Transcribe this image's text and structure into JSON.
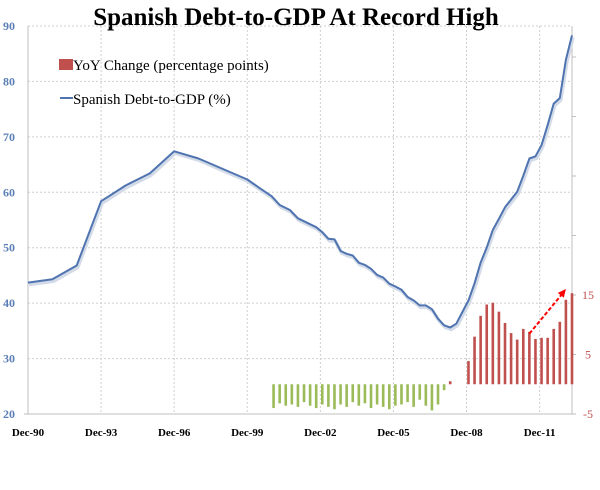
{
  "chart_data": {
    "type": "bar+line",
    "title": "Spanish Debt-to-GDP At Record High",
    "legend": {
      "placement": "top-left",
      "entries": [
        {
          "name": "YoY Change (percentage points)",
          "type": "bar",
          "color": "#c0504d"
        },
        {
          "name": "Spanish Debt-to-GDP (%)",
          "type": "line",
          "color": "#4f74b0"
        }
      ]
    },
    "x_tick_labels": [
      "Dec-90",
      "Dec-93",
      "Dec-96",
      "Dec-99",
      "Dec-02",
      "Dec-05",
      "Dec-08",
      "Dec-11"
    ],
    "x_tick_years": [
      1990.92,
      1993.92,
      1996.92,
      1999.92,
      2002.92,
      2005.92,
      2008.92,
      2011.92
    ],
    "x_range": [
      1990.92,
      2013.25
    ],
    "left_axis": {
      "label": "Spanish Debt-to-GDP (%)",
      "ticks": [
        20,
        30,
        40,
        50,
        60,
        70,
        80,
        90
      ],
      "range": [
        20,
        90
      ],
      "color": "#5b7fb5"
    },
    "right_axis": {
      "label": "YoY Change (percentage points)",
      "ticks": [
        -5,
        5,
        15
      ],
      "range": [
        -5,
        50
      ],
      "color": "#c0504d"
    },
    "grid": true,
    "series": [
      {
        "name": "Spanish Debt-to-GDP (%)",
        "axis": "left",
        "color": "#4f74b0",
        "x": [
          1990.92,
          1991.92,
          1992.92,
          1993.92,
          1994.92,
          1995.92,
          1996.92,
          1997.92,
          1998.92,
          1999.92,
          2000.42,
          2000.92,
          2001.25,
          2001.67,
          2002.0,
          2002.42,
          2002.75,
          2003.0,
          2003.25,
          2003.5,
          2003.75,
          2004.0,
          2004.25,
          2004.5,
          2004.75,
          2005.0,
          2005.25,
          2005.5,
          2005.75,
          2006.0,
          2006.25,
          2006.5,
          2006.75,
          2007.0,
          2007.25,
          2007.5,
          2007.75,
          2008.0,
          2008.25,
          2008.5,
          2008.75,
          2009.0,
          2009.25,
          2009.5,
          2009.75,
          2010.0,
          2010.25,
          2010.5,
          2010.75,
          2011.0,
          2011.25,
          2011.5,
          2011.75,
          2012.0,
          2012.25,
          2012.5,
          2012.75,
          2013.0,
          2013.25
        ],
        "values": [
          43.7,
          44.3,
          46.8,
          58.4,
          61.2,
          63.4,
          67.4,
          66.1,
          64.2,
          62.3,
          60.8,
          59.3,
          57.7,
          56.8,
          55.3,
          54.4,
          53.7,
          52.8,
          51.6,
          51.5,
          49.4,
          48.9,
          48.6,
          47.3,
          46.9,
          46.2,
          45.1,
          44.6,
          43.5,
          43.0,
          42.4,
          41.1,
          40.5,
          39.6,
          39.6,
          38.9,
          37.2,
          36.0,
          35.6,
          36.3,
          38.4,
          40.5,
          43.6,
          47.3,
          50.0,
          53.2,
          55.2,
          57.3,
          58.7,
          60.1,
          63.0,
          66.1,
          66.5,
          68.5,
          72.1,
          76.0,
          77.0,
          83.9,
          88.3
        ]
      },
      {
        "name": "YoY Change (percentage points)",
        "axis": "right",
        "type": "bar",
        "positive_color": "#c0504d",
        "negative_color": "#9bbb59",
        "x": [
          2001.0,
          2001.25,
          2001.5,
          2001.75,
          2002.0,
          2002.25,
          2002.5,
          2002.75,
          2003.0,
          2003.25,
          2003.5,
          2003.75,
          2004.0,
          2004.25,
          2004.5,
          2004.75,
          2005.0,
          2005.25,
          2005.5,
          2005.75,
          2006.0,
          2006.25,
          2006.5,
          2006.75,
          2007.0,
          2007.25,
          2007.5,
          2007.75,
          2008.0,
          2008.25,
          2009.0,
          2009.25,
          2009.5,
          2009.75,
          2010.0,
          2010.25,
          2010.5,
          2010.75,
          2011.0,
          2011.25,
          2011.5,
          2011.75,
          2012.0,
          2012.25,
          2012.5,
          2012.75,
          2013.0,
          2013.25
        ],
        "values": [
          -4.0,
          -3.2,
          -3.6,
          -3.4,
          -3.8,
          -3.0,
          -3.6,
          -4.0,
          -3.4,
          -3.8,
          -4.2,
          -3.4,
          -3.8,
          -3.0,
          -3.6,
          -3.2,
          -4.0,
          -3.4,
          -3.8,
          -4.2,
          -3.6,
          -3.4,
          -3.0,
          -3.8,
          -2.6,
          -3.6,
          -4.4,
          -3.4,
          -1.0,
          0.5,
          3.9,
          8.0,
          11.5,
          13.4,
          13.7,
          12.2,
          10.3,
          8.6,
          7.5,
          9.3,
          8.8,
          7.6,
          7.8,
          7.8,
          9.3,
          10.5,
          14.2,
          15.3
        ]
      }
    ],
    "annotations": [
      {
        "type": "arrow",
        "style": "dashed",
        "color": "#ff0000",
        "from": [
          2011.5,
          8.5
        ],
        "to": [
          2013.0,
          16.0
        ],
        "description": "red dashed upward arrow highlighting accelerating YoY change"
      }
    ]
  }
}
